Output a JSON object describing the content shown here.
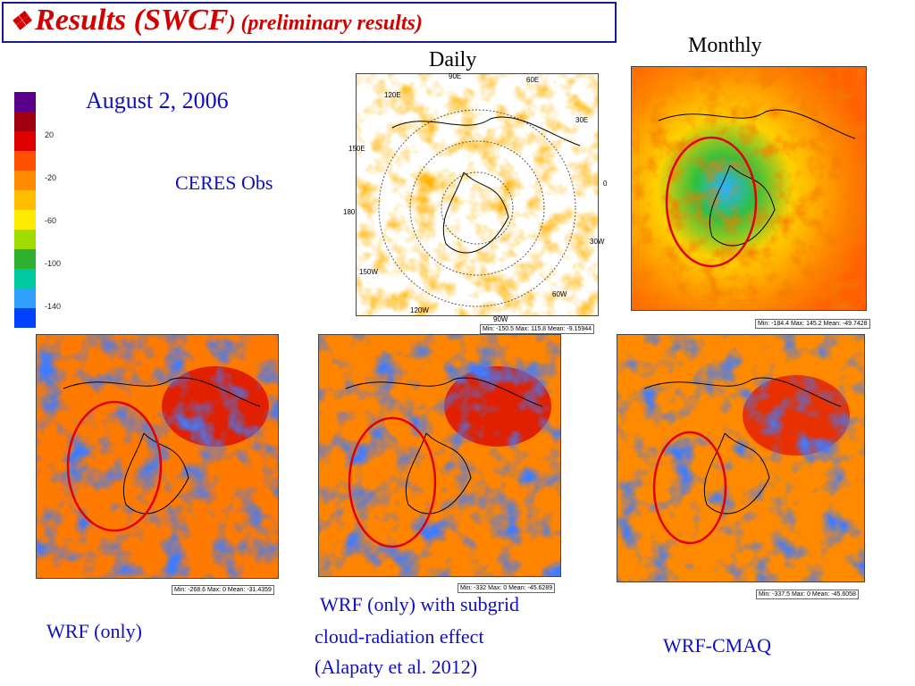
{
  "title": {
    "icon": "diamond-bullet-icon",
    "main": "Results (SWCF",
    "close": ")",
    "sub": " (preliminary results",
    ".close2": ")"
  },
  "labels": {
    "daily": "Daily",
    "monthly": "Monthly",
    "date": "August 2, 2006",
    "ceres": "CERES Obs",
    "wrf_only": "WRF (only)",
    "wrf_subgrid_1": "WRF (only) with subgrid",
    "wrf_subgrid_2": "cloud-radiation effect",
    "wrf_subgrid_3": "(Alapaty et al. 2012)",
    "wrf_cmaq": "WRF-CMAQ"
  },
  "colorbar": {
    "ticks": [
      "20",
      "-20",
      "-60",
      "-100",
      "-140"
    ],
    "colors": [
      "#5a008c",
      "#a00010",
      "#e00000",
      "#ff5000",
      "#ff8c00",
      "#ffbe00",
      "#ffeb00",
      "#a0dc00",
      "#30b030",
      "#00c8a0",
      "#30a0ff",
      "#0040ff"
    ]
  },
  "maps": {
    "ceres_daily": {
      "stats": "Min: -150.5  Max: 115.8  Mean: -9.15944"
    },
    "ceres_monthly": {
      "stats": "Min: -184.4  Max: 145.2  Mean: -49.7428"
    },
    "wrf_only": {
      "stats": "Min: -268.6  Max: 0  Mean: -31.4359"
    },
    "wrf_subgrid": {
      "stats": "Min: -332  Max: 0  Mean: -45.6289"
    },
    "wrf_cmaq": {
      "stats": "Min: -337.5  Max: 0  Mean: -45.6058"
    }
  },
  "ticks": {
    "t90e": "90E",
    "t60e": "60E",
    "t120e": "120E",
    "t30e": "30E",
    "t150e": "150E",
    "t0": "0",
    "t180": "180",
    "t30w": "30W",
    "t150w": "150W",
    "t60w": "60W",
    "t120w": "120W",
    "t90w": "90W"
  }
}
